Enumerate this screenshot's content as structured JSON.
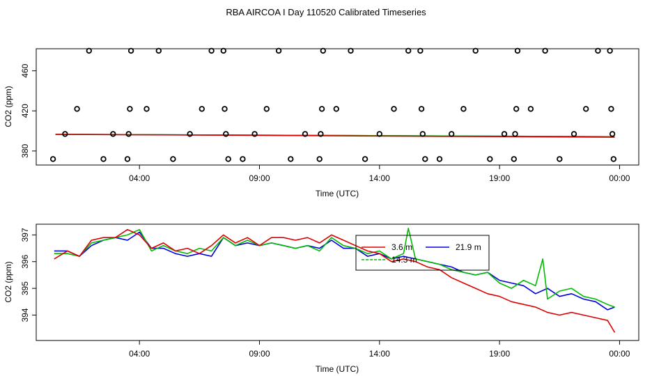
{
  "figure_title": "RBA AIRCOA I  Day 110520  Calibrated Timeseries",
  "chart_data": [
    {
      "type": "scatter",
      "title": "",
      "xlabel": "Time (UTC)",
      "ylabel": "CO2 (ppm)",
      "xlim": [
        -0.3,
        24.8
      ],
      "ylim": [
        366,
        482
      ],
      "xticks": [
        4,
        9,
        14,
        19,
        24
      ],
      "xtick_labels": [
        "04:00",
        "09:00",
        "14:00",
        "19:00",
        "00:00"
      ],
      "yticks": [
        380,
        420,
        460
      ],
      "ytick_labels": [
        "380",
        "420",
        "460"
      ],
      "points_marker": "open-circle",
      "points": [
        [
          0.4,
          372
        ],
        [
          0.9,
          397
        ],
        [
          1.4,
          422
        ],
        [
          1.9,
          480
        ],
        [
          2.5,
          372
        ],
        [
          2.9,
          397
        ],
        [
          3.5,
          372
        ],
        [
          3.55,
          397
        ],
        [
          3.6,
          422
        ],
        [
          3.65,
          480
        ],
        [
          4.3,
          422
        ],
        [
          4.8,
          480
        ],
        [
          5.4,
          372
        ],
        [
          6.1,
          397
        ],
        [
          6.6,
          422
        ],
        [
          7.0,
          480
        ],
        [
          7.5,
          480
        ],
        [
          7.55,
          422
        ],
        [
          7.6,
          397
        ],
        [
          7.7,
          372
        ],
        [
          8.3,
          372
        ],
        [
          8.8,
          397
        ],
        [
          9.3,
          422
        ],
        [
          9.8,
          480
        ],
        [
          10.3,
          372
        ],
        [
          10.9,
          397
        ],
        [
          11.5,
          372
        ],
        [
          11.55,
          397
        ],
        [
          11.6,
          422
        ],
        [
          11.65,
          480
        ],
        [
          12.2,
          422
        ],
        [
          12.8,
          480
        ],
        [
          13.4,
          372
        ],
        [
          14.0,
          397
        ],
        [
          14.6,
          422
        ],
        [
          15.2,
          480
        ],
        [
          15.7,
          480
        ],
        [
          15.75,
          422
        ],
        [
          15.8,
          397
        ],
        [
          15.9,
          372
        ],
        [
          16.5,
          372
        ],
        [
          17.0,
          397
        ],
        [
          17.5,
          422
        ],
        [
          18.0,
          480
        ],
        [
          18.6,
          372
        ],
        [
          19.2,
          397
        ],
        [
          19.6,
          372
        ],
        [
          19.65,
          397
        ],
        [
          19.7,
          422
        ],
        [
          19.75,
          480
        ],
        [
          20.3,
          422
        ],
        [
          20.9,
          480
        ],
        [
          21.5,
          372
        ],
        [
          22.1,
          397
        ],
        [
          22.6,
          422
        ],
        [
          23.1,
          480
        ],
        [
          23.6,
          480
        ],
        [
          23.65,
          422
        ],
        [
          23.7,
          397
        ],
        [
          23.75,
          372
        ]
      ],
      "series": [
        {
          "name": "3.6 m",
          "color": "#dd0000",
          "values": [
            [
              0.5,
              396.6
            ],
            [
              23.8,
              393.7
            ]
          ]
        },
        {
          "name": "14.3 m",
          "color": "#00bb00",
          "values": [
            [
              0.5,
              396.6
            ],
            [
              23.8,
              394.3
            ]
          ]
        },
        {
          "name": "21.9 m",
          "color": "#0000dd",
          "values": [
            [
              0.5,
              396.6
            ],
            [
              23.8,
              394.3
            ]
          ]
        }
      ]
    },
    {
      "type": "line",
      "title": "",
      "xlabel": "Time (UTC)",
      "ylabel": "CO2 (ppm)",
      "xlim": [
        -0.3,
        24.8
      ],
      "ylim": [
        393.05,
        397.4
      ],
      "xticks": [
        4,
        9,
        14,
        19,
        24
      ],
      "xtick_labels": [
        "04:00",
        "09:00",
        "14:00",
        "19:00",
        "00:00"
      ],
      "yticks": [
        394,
        395,
        396,
        397
      ],
      "ytick_labels": [
        "394",
        "395",
        "396",
        "397"
      ],
      "legend": {
        "position": "top-center",
        "entries": [
          {
            "label": "3.6 m",
            "color": "#dd0000"
          },
          {
            "label": "21.9 m",
            "color": "#0000dd"
          },
          {
            "label": "14.3 m",
            "color": "#00bb00"
          }
        ]
      },
      "series": [
        {
          "name": "3.6 m",
          "color": "#dd0000",
          "values": [
            [
              0.45,
              396.1
            ],
            [
              1.0,
              396.4
            ],
            [
              1.5,
              396.2
            ],
            [
              2.0,
              396.8
            ],
            [
              2.5,
              396.9
            ],
            [
              3.0,
              396.9
            ],
            [
              3.5,
              397.2
            ],
            [
              4.0,
              397.0
            ],
            [
              4.5,
              396.5
            ],
            [
              5.0,
              396.7
            ],
            [
              5.5,
              396.4
            ],
            [
              6.0,
              396.5
            ],
            [
              6.5,
              396.3
            ],
            [
              7.0,
              396.6
            ],
            [
              7.5,
              397.0
            ],
            [
              8.0,
              396.7
            ],
            [
              8.5,
              396.9
            ],
            [
              9.0,
              396.6
            ],
            [
              9.5,
              396.9
            ],
            [
              10.0,
              396.9
            ],
            [
              10.5,
              396.8
            ],
            [
              11.0,
              396.9
            ],
            [
              11.5,
              396.7
            ],
            [
              12.0,
              397.0
            ],
            [
              12.5,
              396.8
            ],
            [
              13.0,
              396.6
            ],
            [
              13.5,
              396.4
            ],
            [
              14.0,
              396.3
            ],
            [
              14.5,
              396.0
            ],
            [
              15.0,
              396.1
            ],
            [
              15.5,
              396.0
            ],
            [
              16.0,
              395.8
            ],
            [
              16.5,
              395.7
            ],
            [
              17.0,
              395.4
            ],
            [
              17.5,
              395.2
            ],
            [
              18.0,
              395.0
            ],
            [
              18.5,
              394.8
            ],
            [
              19.0,
              394.7
            ],
            [
              19.5,
              394.5
            ],
            [
              20.0,
              394.4
            ],
            [
              20.5,
              394.3
            ],
            [
              21.0,
              394.1
            ],
            [
              21.5,
              394.0
            ],
            [
              22.0,
              394.1
            ],
            [
              22.5,
              394.0
            ],
            [
              23.0,
              393.9
            ],
            [
              23.5,
              393.8
            ],
            [
              23.8,
              393.35
            ]
          ]
        },
        {
          "name": "14.3 m",
          "color": "#00bb00",
          "values": [
            [
              0.45,
              396.3
            ],
            [
              1.0,
              396.3
            ],
            [
              1.5,
              396.2
            ],
            [
              2.0,
              396.7
            ],
            [
              2.5,
              396.8
            ],
            [
              3.0,
              396.9
            ],
            [
              3.5,
              397.0
            ],
            [
              4.0,
              397.2
            ],
            [
              4.5,
              396.4
            ],
            [
              5.0,
              396.6
            ],
            [
              5.5,
              396.4
            ],
            [
              6.0,
              396.3
            ],
            [
              6.5,
              396.5
            ],
            [
              7.0,
              396.4
            ],
            [
              7.5,
              396.9
            ],
            [
              8.0,
              396.6
            ],
            [
              8.5,
              396.8
            ],
            [
              9.0,
              396.6
            ],
            [
              9.5,
              396.7
            ],
            [
              10.0,
              396.6
            ],
            [
              10.5,
              396.5
            ],
            [
              11.0,
              396.6
            ],
            [
              11.5,
              396.4
            ],
            [
              12.0,
              396.9
            ],
            [
              12.5,
              396.6
            ],
            [
              13.0,
              396.5
            ],
            [
              13.5,
              396.3
            ],
            [
              14.0,
              396.4
            ],
            [
              14.5,
              396.1
            ],
            [
              15.0,
              396.3
            ],
            [
              15.2,
              397.25
            ],
            [
              15.5,
              396.1
            ],
            [
              16.0,
              396.0
            ],
            [
              16.5,
              395.9
            ],
            [
              17.0,
              395.7
            ],
            [
              17.5,
              395.6
            ],
            [
              18.0,
              395.5
            ],
            [
              18.5,
              395.6
            ],
            [
              19.0,
              395.2
            ],
            [
              19.5,
              395.0
            ],
            [
              20.0,
              395.3
            ],
            [
              20.5,
              395.1
            ],
            [
              20.8,
              396.1
            ],
            [
              21.0,
              394.6
            ],
            [
              21.5,
              394.9
            ],
            [
              22.0,
              395.0
            ],
            [
              22.5,
              394.7
            ],
            [
              23.0,
              394.6
            ],
            [
              23.5,
              394.4
            ],
            [
              23.8,
              394.3
            ]
          ]
        },
        {
          "name": "21.9 m",
          "color": "#0000dd",
          "values": [
            [
              0.45,
              396.4
            ],
            [
              1.0,
              396.4
            ],
            [
              1.5,
              396.2
            ],
            [
              2.0,
              396.6
            ],
            [
              2.5,
              396.8
            ],
            [
              3.0,
              396.9
            ],
            [
              3.5,
              396.8
            ],
            [
              4.0,
              397.1
            ],
            [
              4.5,
              396.5
            ],
            [
              5.0,
              396.5
            ],
            [
              5.5,
              396.3
            ],
            [
              6.0,
              396.2
            ],
            [
              6.5,
              396.3
            ],
            [
              7.0,
              396.2
            ],
            [
              7.5,
              396.9
            ],
            [
              8.0,
              396.6
            ],
            [
              8.5,
              396.7
            ],
            [
              9.0,
              396.6
            ],
            [
              9.5,
              396.7
            ],
            [
              10.0,
              396.6
            ],
            [
              10.5,
              396.5
            ],
            [
              11.0,
              396.6
            ],
            [
              11.5,
              396.5
            ],
            [
              12.0,
              396.8
            ],
            [
              12.5,
              396.5
            ],
            [
              13.0,
              396.5
            ],
            [
              13.5,
              396.2
            ],
            [
              14.0,
              396.3
            ],
            [
              14.5,
              396.1
            ],
            [
              15.0,
              396.2
            ],
            [
              15.5,
              396.1
            ],
            [
              16.0,
              396.0
            ],
            [
              16.5,
              395.9
            ],
            [
              17.0,
              395.8
            ],
            [
              17.5,
              395.6
            ],
            [
              18.0,
              395.5
            ],
            [
              18.5,
              395.6
            ],
            [
              19.0,
              395.3
            ],
            [
              19.5,
              395.2
            ],
            [
              20.0,
              395.1
            ],
            [
              20.5,
              394.8
            ],
            [
              21.0,
              395.0
            ],
            [
              21.5,
              394.7
            ],
            [
              22.0,
              394.8
            ],
            [
              22.5,
              394.6
            ],
            [
              23.0,
              394.5
            ],
            [
              23.5,
              394.2
            ],
            [
              23.8,
              394.3
            ]
          ]
        }
      ]
    }
  ]
}
